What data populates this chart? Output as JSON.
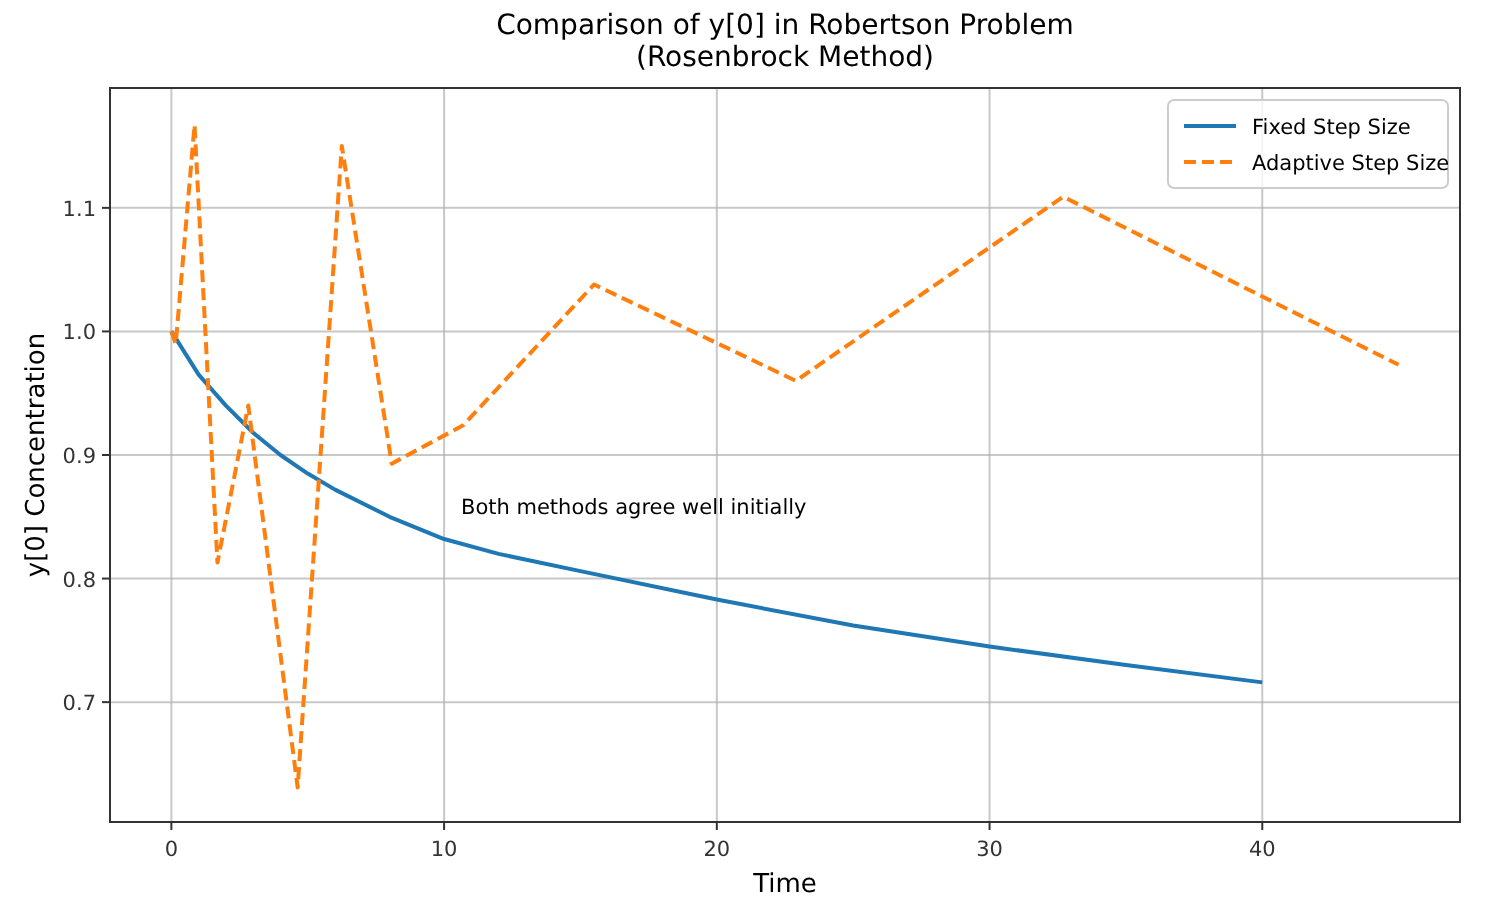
{
  "chart_data": {
    "type": "line",
    "title": "Comparison of y[0] in Robertson Problem\n(Rosenbrock Method)",
    "xlabel": "Time",
    "ylabel": "y[0] Concentration",
    "xlim": [
      -2.25,
      47.25
    ],
    "xticks": [
      0,
      10,
      20,
      30,
      40
    ],
    "ylim": [
      0.603,
      1.197
    ],
    "yticks": [
      0.7,
      0.8,
      0.9,
      {
        "value": 1,
        "label": "1.0"
      },
      1.1
    ],
    "grid": true,
    "legend": "top right",
    "series": [
      {
        "name": "Fixed Step Size",
        "color": "#1f77b4",
        "line_style": "solid",
        "x": [
          0,
          1,
          2,
          3,
          4,
          5,
          6,
          8,
          10,
          12,
          15,
          20,
          25,
          30,
          35,
          40
        ],
        "values": [
          1.0,
          0.965,
          0.94,
          0.918,
          0.9,
          0.885,
          0.872,
          0.85,
          0.832,
          0.82,
          0.806,
          0.783,
          0.762,
          0.745,
          0.73,
          0.716
        ]
      },
      {
        "name": "Adaptive Step Size",
        "color": "#ff7f0e",
        "line_style": "dashed",
        "x": [
          0,
          0.16,
          0.85,
          1.69,
          2.82,
          4.63,
          6.25,
          8.08,
          10.7,
          15.5,
          22.9,
          32.7,
          45
        ],
        "values": [
          1.0,
          0.99,
          1.167,
          0.813,
          0.94,
          0.631,
          1.15,
          0.893,
          0.924,
          1.038,
          0.96,
          1.109,
          0.973
        ]
      }
    ],
    "annotations": [
      "Both methods agree well initially"
    ]
  }
}
